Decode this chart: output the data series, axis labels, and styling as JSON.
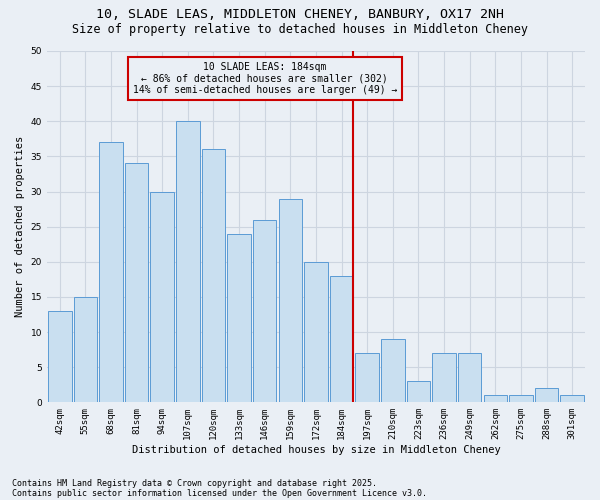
{
  "title1": "10, SLADE LEAS, MIDDLETON CHENEY, BANBURY, OX17 2NH",
  "title2": "Size of property relative to detached houses in Middleton Cheney",
  "xlabel": "Distribution of detached houses by size in Middleton Cheney",
  "ylabel": "Number of detached properties",
  "categories": [
    "42sqm",
    "55sqm",
    "68sqm",
    "81sqm",
    "94sqm",
    "107sqm",
    "120sqm",
    "133sqm",
    "146sqm",
    "159sqm",
    "172sqm",
    "184sqm",
    "197sqm",
    "210sqm",
    "223sqm",
    "236sqm",
    "249sqm",
    "262sqm",
    "275sqm",
    "288sqm",
    "301sqm"
  ],
  "values": [
    13,
    15,
    37,
    34,
    30,
    40,
    36,
    24,
    26,
    29,
    20,
    18,
    7,
    9,
    3,
    7,
    7,
    1,
    1,
    2,
    1
  ],
  "bar_color": "#c9dff0",
  "bar_edge_color": "#5b9bd5",
  "vline_x_index": 11,
  "vline_color": "#cc0000",
  "annotation_line1": "10 SLADE LEAS: 184sqm",
  "annotation_line2": "← 86% of detached houses are smaller (302)",
  "annotation_line3": "14% of semi-detached houses are larger (49) →",
  "ylim": [
    0,
    50
  ],
  "yticks": [
    0,
    5,
    10,
    15,
    20,
    25,
    30,
    35,
    40,
    45,
    50
  ],
  "grid_color": "#cdd5e0",
  "bg_color": "#eaeff5",
  "footer1": "Contains HM Land Registry data © Crown copyright and database right 2025.",
  "footer2": "Contains public sector information licensed under the Open Government Licence v3.0.",
  "title_fontsize": 9.5,
  "subtitle_fontsize": 8.5,
  "axis_label_fontsize": 7.5,
  "tick_fontsize": 6.5,
  "annotation_fontsize": 7,
  "footer_fontsize": 6
}
